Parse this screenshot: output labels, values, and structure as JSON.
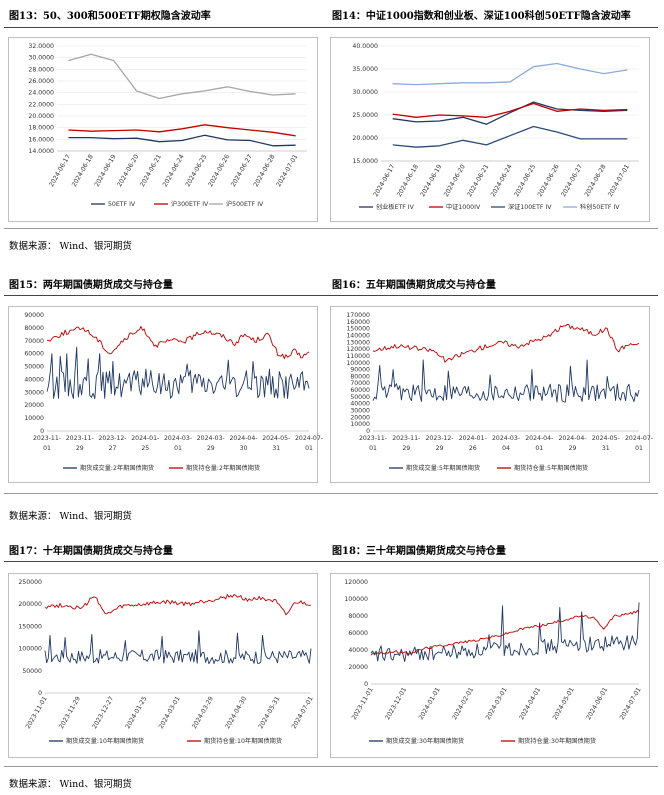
{
  "figures": [
    {
      "title": "图13：50、300和500ETF期权隐含波动率"
    },
    {
      "title": "图14：中证1000指数和创业板、深证100科创50ETF隐含波动率"
    },
    {
      "title": "图15：两年期国债期货成交与持仓量"
    },
    {
      "title": "图16：五年期国债期货成交与持仓量"
    },
    {
      "title": "图17：十年期国债期货成交与持仓量"
    },
    {
      "title": "图18：三十年期国债期货成交与持仓量"
    }
  ],
  "sources": [
    "数据来源：  Wind、银河期货",
    "数据来源：  Wind、银河期货",
    "数据来源：  Wind、银河期货"
  ],
  "chart_data": [
    {
      "type": "line",
      "x": [
        "2024-06-17",
        "2024-06-18",
        "2024-06-19",
        "2024-06-20",
        "2024-06-21",
        "2024-06-24",
        "2024-06-25",
        "2024-06-26",
        "2024-06-27",
        "2024-06-28",
        "2024-07-01"
      ],
      "ylim": [
        14,
        32
      ],
      "yticks": [
        "14.0000",
        "16.0000",
        "18.0000",
        "20.0000",
        "22.0000",
        "24.0000",
        "26.0000",
        "28.0000",
        "30.0000",
        "32.0000"
      ],
      "series": [
        {
          "name": "50ETF IV",
          "color": "#1f3864",
          "values": [
            16.3,
            16.3,
            16.1,
            16.2,
            15.6,
            15.8,
            16.7,
            15.9,
            15.8,
            14.9,
            15.0
          ]
        },
        {
          "name": "沪300ETF IV",
          "color": "#c00000",
          "values": [
            17.6,
            17.4,
            17.5,
            17.6,
            17.3,
            17.8,
            18.5,
            18.0,
            17.6,
            17.2,
            16.6
          ]
        },
        {
          "name": "沪500ETF IV",
          "color": "#a6a6a6",
          "values": [
            29.5,
            30.6,
            29.5,
            24.3,
            23.0,
            23.8,
            24.3,
            25.0,
            24.2,
            23.6,
            23.8
          ]
        }
      ]
    },
    {
      "type": "line",
      "x": [
        "2024-06-17",
        "2024-06-18",
        "2024-06-19",
        "2024-06-20",
        "2024-06-21",
        "2024-06-24",
        "2024-06-25",
        "2024-06-26",
        "2024-06-27",
        "2024-06-28",
        "2024-07-01"
      ],
      "ylim": [
        15,
        40
      ],
      "yticks": [
        "15.0000",
        "20.0000",
        "25.0000",
        "30.0000",
        "35.0000",
        "40.0000"
      ],
      "series": [
        {
          "name": "创业板ETF IV",
          "color": "#1f3864",
          "values": [
            24.2,
            23.5,
            23.7,
            24.5,
            23.0,
            25.5,
            27.8,
            26.3,
            26.0,
            25.8,
            26.0
          ]
        },
        {
          "name": "中证1000IV",
          "color": "#c00000",
          "values": [
            25.2,
            24.5,
            25.0,
            24.8,
            24.5,
            25.8,
            27.5,
            25.8,
            26.3,
            26.0,
            26.2
          ]
        },
        {
          "name": "深证100ETF IV",
          "color": "#2e4a7a",
          "values": [
            18.5,
            18.0,
            18.3,
            19.5,
            18.5,
            20.5,
            22.5,
            21.3,
            19.8,
            19.8,
            19.8
          ]
        },
        {
          "name": "科创50ETF IV",
          "color": "#8eaadb",
          "values": [
            31.8,
            31.6,
            31.8,
            32.0,
            32.0,
            32.2,
            35.5,
            36.2,
            35.0,
            34.0,
            34.8
          ]
        }
      ]
    },
    {
      "type": "line",
      "categories": [
        "2023-11-01",
        "2023-11-29",
        "2023-12-27",
        "2024-01-25",
        "2024-03-01",
        "2024-03-29",
        "2024-04-30",
        "2024-05-31",
        "2024-07-01"
      ],
      "ylim": [
        0,
        90000
      ],
      "yticks": [
        "0",
        "10000",
        "20000",
        "30000",
        "40000",
        "50000",
        "60000",
        "70000",
        "80000",
        "90000"
      ],
      "series": [
        {
          "name": "期货成交量:2年期国债期货",
          "color": "#1f3864",
          "seed": 15,
          "count": 160,
          "base": 36000,
          "amp": 11000,
          "peaks": [
            [
              3,
              60000
            ],
            [
              8,
              58000
            ],
            [
              12,
              60000
            ],
            [
              18,
              65000
            ],
            [
              25,
              56000
            ],
            [
              32,
              60000
            ],
            [
              40,
              54000
            ],
            [
              60,
              48000
            ],
            [
              85,
              52000
            ],
            [
              110,
              55000
            ],
            [
              125,
              54000
            ],
            [
              135,
              48000
            ]
          ],
          "end": 33000
        },
        {
          "name": "期货持仓量:2年期国债期货",
          "color": "#c00000",
          "seed": 25,
          "count": 160,
          "path": [
            [
              0,
              70000
            ],
            [
              10,
              76000
            ],
            [
              22,
              80000
            ],
            [
              30,
              72000
            ],
            [
              38,
              60000
            ],
            [
              48,
              72000
            ],
            [
              58,
              80000
            ],
            [
              66,
              66000
            ],
            [
              74,
              70000
            ],
            [
              84,
              70000
            ],
            [
              96,
              78000
            ],
            [
              106,
              74000
            ],
            [
              114,
              68000
            ],
            [
              120,
              75000
            ],
            [
              126,
              70000
            ],
            [
              134,
              75000
            ],
            [
              140,
              60000
            ],
            [
              146,
              57000
            ],
            [
              150,
              62000
            ],
            [
              154,
              58000
            ],
            [
              159,
              60000
            ]
          ],
          "noise": 2000
        }
      ]
    },
    {
      "type": "line",
      "categories": [
        "2023-11-01",
        "2023-11-29",
        "2023-12-29",
        "2024-01-26",
        "2024-03-04",
        "2024-04-01",
        "2024-04-29",
        "2024-05-31",
        "2024-07-01"
      ],
      "ylim": [
        0,
        170000
      ],
      "yticks": [
        "0",
        "10000",
        "20000",
        "30000",
        "40000",
        "50000",
        "60000",
        "70000",
        "80000",
        "90000",
        "100000",
        "110000",
        "120000",
        "130000",
        "140000",
        "150000",
        "160000",
        "170000"
      ],
      "series": [
        {
          "name": "期货成交量:5年期国债期货",
          "color": "#1f3864",
          "seed": 16,
          "count": 160,
          "base": 56000,
          "amp": 14000,
          "peaks": [
            [
              4,
              96000
            ],
            [
              12,
              90000
            ],
            [
              30,
              104000
            ],
            [
              45,
              88000
            ],
            [
              70,
              82000
            ],
            [
              95,
              90000
            ],
            [
              118,
              95000
            ],
            [
              128,
              104000
            ],
            [
              140,
              80000
            ]
          ],
          "end": 60000
        },
        {
          "name": "期货持仓量:5年期国债期货",
          "color": "#c00000",
          "seed": 26,
          "count": 160,
          "path": [
            [
              0,
              118000
            ],
            [
              14,
              125000
            ],
            [
              28,
              120000
            ],
            [
              36,
              118000
            ],
            [
              44,
              102000
            ],
            [
              52,
              112000
            ],
            [
              62,
              120000
            ],
            [
              70,
              126000
            ],
            [
              78,
              130000
            ],
            [
              86,
              124000
            ],
            [
              96,
              132000
            ],
            [
              106,
              140000
            ],
            [
              114,
              155000
            ],
            [
              124,
              150000
            ],
            [
              132,
              142000
            ],
            [
              140,
              150000
            ],
            [
              146,
              118000
            ],
            [
              152,
              126000
            ],
            [
              159,
              128000
            ]
          ],
          "noise": 3500
        }
      ]
    },
    {
      "type": "line",
      "categories": [
        "2023-11-01",
        "2023-11-29",
        "2023-12-27",
        "2024-01-25",
        "2024-03-01",
        "2024-03-29",
        "2024-04-30",
        "2024-05-31",
        "2024-07-01"
      ],
      "ylim": [
        0,
        250000
      ],
      "yticks": [
        "0",
        "50000",
        "100000",
        "150000",
        "200000",
        "250000"
      ],
      "series": [
        {
          "name": "期货成交量:10年期国债期货",
          "color": "#1f3864",
          "seed": 17,
          "count": 160,
          "base": 82000,
          "amp": 16000,
          "peaks": [
            [
              3,
              130000
            ],
            [
              12,
              125000
            ],
            [
              28,
              132000
            ],
            [
              48,
              118000
            ],
            [
              70,
              128000
            ],
            [
              92,
              140000
            ],
            [
              115,
              135000
            ],
            [
              130,
              130000
            ],
            [
              150,
              80000
            ]
          ],
          "end": 100000
        },
        {
          "name": "期货持仓量:10年期国债期货",
          "color": "#c00000",
          "seed": 27,
          "count": 160,
          "path": [
            [
              0,
              195000
            ],
            [
              12,
              198000
            ],
            [
              22,
              190000
            ],
            [
              30,
              220000
            ],
            [
              36,
              175000
            ],
            [
              46,
              195000
            ],
            [
              60,
              200000
            ],
            [
              72,
              205000
            ],
            [
              86,
              200000
            ],
            [
              100,
              210000
            ],
            [
              112,
              220000
            ],
            [
              122,
              210000
            ],
            [
              130,
              215000
            ],
            [
              138,
              205000
            ],
            [
              144,
              175000
            ],
            [
              150,
              205000
            ],
            [
              159,
              200000
            ]
          ],
          "noise": 5000
        }
      ]
    },
    {
      "type": "line",
      "categories": [
        "2023-11-01",
        "2023-12-01",
        "2024-01-01",
        "2024-02-01",
        "2024-03-01",
        "2024-04-01",
        "2024-05-01",
        "2024-06-01",
        "2024-07-01"
      ],
      "ylim": [
        0,
        120000
      ],
      "yticks": [
        "0",
        "20000",
        "40000",
        "60000",
        "80000",
        "100000",
        "120000"
      ],
      "series": [
        {
          "name": "期货成交量:30年期国债期货",
          "color": "#1f3864",
          "seed": 18,
          "count": 160,
          "base": 32000,
          "amp": 9000,
          "trend": 18000,
          "peaks": [
            [
              6,
              45000
            ],
            [
              30,
              40000
            ],
            [
              70,
              58000
            ],
            [
              78,
              92000
            ],
            [
              100,
              72000
            ],
            [
              112,
              90000
            ],
            [
              125,
              85000
            ],
            [
              150,
              40000
            ]
          ],
          "end": 96000
        },
        {
          "name": "期货持仓量:30年期国债期货",
          "color": "#c00000",
          "seed": 28,
          "count": 160,
          "path": [
            [
              0,
              35000
            ],
            [
              14,
              38000
            ],
            [
              22,
              36000
            ],
            [
              32,
              42000
            ],
            [
              50,
              48000
            ],
            [
              64,
              52000
            ],
            [
              78,
              58000
            ],
            [
              92,
              66000
            ],
            [
              104,
              70000
            ],
            [
              114,
              75000
            ],
            [
              124,
              80000
            ],
            [
              132,
              78000
            ],
            [
              138,
              64000
            ],
            [
              144,
              80000
            ],
            [
              152,
              82000
            ],
            [
              159,
              86000
            ]
          ],
          "noise": 1500
        }
      ]
    }
  ]
}
